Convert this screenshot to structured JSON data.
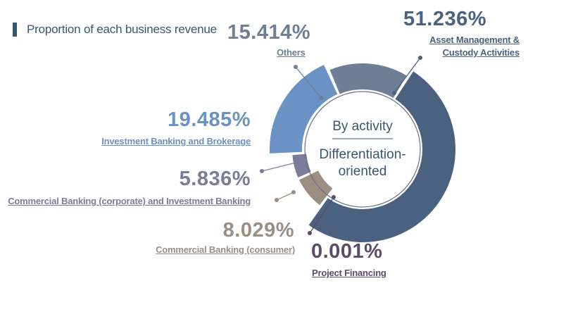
{
  "chart_data": {
    "type": "pie",
    "title": "Proportion of each business revenue",
    "center_labels": [
      "By activity",
      "Differentiation-oriented"
    ],
    "slices": [
      {
        "label": "Asset Management & Custody Activities",
        "value": 51.236,
        "value_label": "51.236%",
        "color": "#4a6180"
      },
      {
        "label": "Project Financing",
        "value": 0.001,
        "value_label": "0.001%",
        "color": "#5c4a6a"
      },
      {
        "label": "Commercial Banking (consumer)",
        "value": 8.029,
        "value_label": "8.029%",
        "color": "#9b8e83"
      },
      {
        "label": "Commercial Banking (corporate) and Investment Banking",
        "value": 5.836,
        "value_label": "5.836%",
        "color": "#7b7b9b"
      },
      {
        "label": "Investment Banking and Brokerage",
        "value": 19.485,
        "value_label": "19.485%",
        "color": "#6a92c4"
      },
      {
        "label": "Others",
        "value": 15.414,
        "value_label": "15.414%",
        "color": "#6e7f95"
      }
    ]
  }
}
